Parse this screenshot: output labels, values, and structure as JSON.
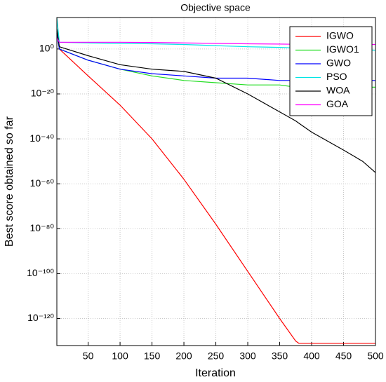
{
  "chart_data": {
    "type": "line",
    "title": "Objective space",
    "x_label": "Iteration",
    "y_label": "Best score obtained so far",
    "log_y": true,
    "grid": true,
    "legend": "top-right",
    "x": [
      1,
      5,
      50,
      100,
      150,
      200,
      250,
      300,
      350,
      375,
      380,
      400,
      450,
      480,
      500
    ],
    "series": [
      {
        "name": "IGWO",
        "color": "#ff0000",
        "values": [
          100000000.0,
          1,
          1e-12,
          1e-25,
          1e-40,
          1e-58,
          1e-78,
          1e-99,
          1e-120,
          1e-130,
          1e-131,
          1e-131,
          1e-131,
          1e-131,
          1e-131
        ]
      },
      {
        "name": "IGWO1",
        "color": "#22dd22",
        "values": [
          10000000.0,
          1,
          1e-05,
          1e-09,
          1e-12,
          1e-14,
          1e-15,
          1e-16,
          1e-16,
          1e-17,
          1e-17,
          1e-17,
          1e-17,
          1e-17,
          1e-17
        ]
      },
      {
        "name": "GWO",
        "color": "#0000ff",
        "values": [
          10000000.0,
          1,
          1e-05,
          1e-09,
          1e-11,
          1e-12,
          1e-13,
          1e-13,
          1e-14,
          1e-14,
          1e-14,
          1e-14,
          1e-14,
          1e-14,
          1e-14
        ]
      },
      {
        "name": "PSO",
        "color": "#00e5e5",
        "values": [
          100000000000000.0,
          1000,
          500,
          300,
          200,
          100,
          30,
          10,
          5,
          3,
          3,
          2,
          1,
          0.5,
          0.3
        ]
      },
      {
        "name": "WOA",
        "color": "#000000",
        "values": [
          1000000000.0,
          10,
          0.001,
          1e-07,
          1e-09,
          1e-10,
          1e-13,
          1e-20,
          1e-28,
          1e-32,
          1e-33,
          1e-37,
          1e-45,
          1e-50,
          1e-55
        ]
      },
      {
        "name": "GOA",
        "color": "#ff00ff",
        "values": [
          100000.0,
          1000,
          1000,
          1000,
          800,
          500,
          300,
          200,
          150,
          120,
          120,
          100,
          100,
          100,
          100
        ]
      }
    ],
    "xlim": [
      1,
      500
    ],
    "xticks": [
      50,
      100,
      150,
      200,
      250,
      300,
      350,
      400,
      450,
      500
    ],
    "ylim": [
      1e-132,
      100000000000000.0
    ],
    "yticks": [
      {
        "value": 1,
        "label": "10⁰"
      },
      {
        "value": 1e-20,
        "label": "10⁻²⁰"
      },
      {
        "value": 1e-40,
        "label": "10⁻⁴⁰"
      },
      {
        "value": 1e-60,
        "label": "10⁻⁶⁰"
      },
      {
        "value": 1e-80,
        "label": "10⁻⁸⁰"
      },
      {
        "value": 1e-100,
        "label": "10⁻¹⁰⁰"
      },
      {
        "value": 1e-120,
        "label": "10⁻¹²⁰"
      }
    ]
  }
}
